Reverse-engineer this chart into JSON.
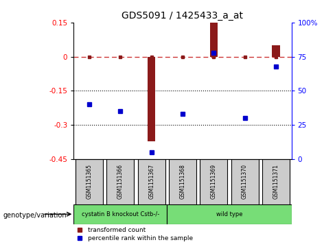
{
  "title": "GDS5091 / 1425433_a_at",
  "samples": [
    "GSM1151365",
    "GSM1151366",
    "GSM1151367",
    "GSM1151368",
    "GSM1151369",
    "GSM1151370",
    "GSM1151371"
  ],
  "transformed_count": [
    0.002,
    0.002,
    -0.37,
    0.002,
    0.15,
    0.002,
    0.05
  ],
  "percentile_rank": [
    40,
    35,
    5,
    33,
    78,
    30,
    68
  ],
  "ylim_left": [
    -0.45,
    0.15
  ],
  "ylim_right": [
    0,
    100
  ],
  "yticks_left": [
    0.15,
    0.0,
    -0.15,
    -0.3,
    -0.45
  ],
  "ytick_labels_left": [
    "0.15",
    "0",
    "-0.15",
    "-0.3",
    "-0.45"
  ],
  "yticks_right": [
    100,
    75,
    50,
    25,
    0
  ],
  "ytick_labels_right": [
    "100%",
    "75",
    "50",
    "25",
    "0"
  ],
  "hlines": [
    -0.15,
    -0.3
  ],
  "dashed_hline": 0,
  "bar_color": "#8b1a1a",
  "dot_color": "#0000cd",
  "dashed_line_color": "#cc3333",
  "background_color": "#ffffff",
  "sample_box_color": "#cccccc",
  "geno_groups": [
    {
      "label": "cystatin B knockout Cstb-/-",
      "start": 0,
      "end": 3
    },
    {
      "label": "wild type",
      "start": 3,
      "end": 7
    }
  ],
  "geno_color": "#77dd77",
  "legend_items": [
    {
      "label": "transformed count",
      "color": "#8b1a1a"
    },
    {
      "label": "percentile rank within the sample",
      "color": "#0000cd"
    }
  ]
}
